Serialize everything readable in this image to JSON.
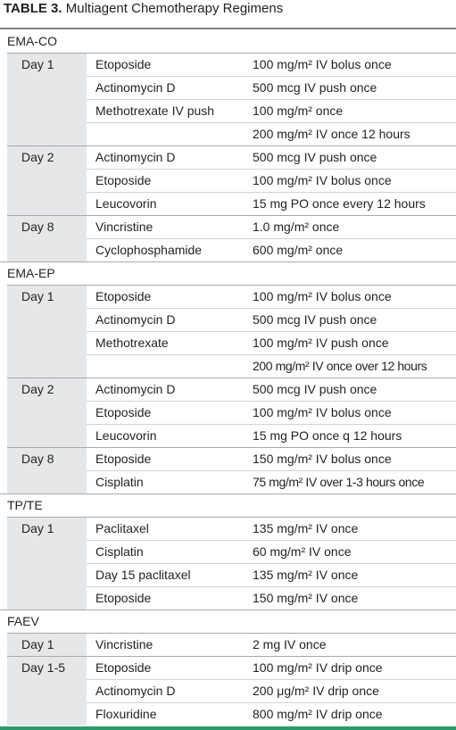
{
  "header": {
    "label": "TABLE 3.",
    "title": "Multiagent Chemotherapy Regimens"
  },
  "table": {
    "groups": [
      {
        "name": "EMA-CO",
        "days": [
          {
            "day": "Day 1",
            "rows": [
              [
                "Etoposide",
                "100 mg/m² IV bolus once"
              ],
              [
                "Actinomycin D",
                "500 mcg IV push once"
              ],
              [
                "Methotrexate IV push",
                "100 mg/m² once"
              ],
              [
                null,
                "200 mg/m² IV once 12 hours"
              ]
            ]
          },
          {
            "day": "Day 2",
            "rows": [
              [
                "Actinomycin D",
                "500 mcg IV push once"
              ],
              [
                "Etoposide",
                "100 mg/m² IV bolus once"
              ],
              [
                "Leucovorin",
                "15 mg PO once every 12 hours"
              ]
            ]
          },
          {
            "day": "Day 8",
            "rows": [
              [
                "Vincristine",
                "1.0 mg/m² once"
              ],
              [
                "Cyclophosphamide",
                "600 mg/m² once"
              ]
            ]
          }
        ]
      },
      {
        "name": "EMA-EP",
        "days": [
          {
            "day": "Day 1",
            "rows": [
              [
                "Etoposide",
                "100 mg/m² IV bolus once"
              ],
              [
                "Actinomycin D",
                "500 mcg IV push once"
              ],
              [
                "Methotrexate",
                "100 mg/m² IV push once"
              ],
              [
                null,
                "200 mg/m² IV once over 12 hours"
              ]
            ]
          },
          {
            "day": "Day 2",
            "rows": [
              [
                "Actinomycin D",
                "500 mcg IV push once"
              ],
              [
                "Etoposide",
                "100 mg/m² IV bolus once"
              ],
              [
                "Leucovorin",
                "15 mg PO once q 12 hours"
              ]
            ]
          },
          {
            "day": "Day 8",
            "rows": [
              [
                "Etoposide",
                "150 mg/m² IV bolus once"
              ],
              [
                "Cisplatin",
                "75 mg/m² IV over 1-3 hours once"
              ]
            ]
          }
        ]
      },
      {
        "name": "TP/TE",
        "days": [
          {
            "day": "Day 1",
            "rows": [
              [
                "Paclitaxel",
                "135 mg/m² IV once"
              ],
              [
                "Cisplatin",
                "60 mg/m² IV once"
              ],
              [
                "Day 15 paclitaxel",
                "135 mg/m² IV once"
              ],
              [
                "Etoposide",
                "150 mg/m² IV once"
              ]
            ]
          }
        ]
      },
      {
        "name": "FAEV",
        "days": [
          {
            "day": "Day 1",
            "rows": [
              [
                "Vincristine",
                "2 mg IV once"
              ]
            ]
          },
          {
            "day": "Day 1-5",
            "rows": [
              [
                "Etoposide",
                "100 mg/m² IV drip once"
              ],
              [
                "Actinomycin D",
                "200 μg/m² IV drip once"
              ],
              [
                "Floxuridine",
                "800 mg/m² IV drip once"
              ]
            ]
          }
        ]
      }
    ]
  }
}
